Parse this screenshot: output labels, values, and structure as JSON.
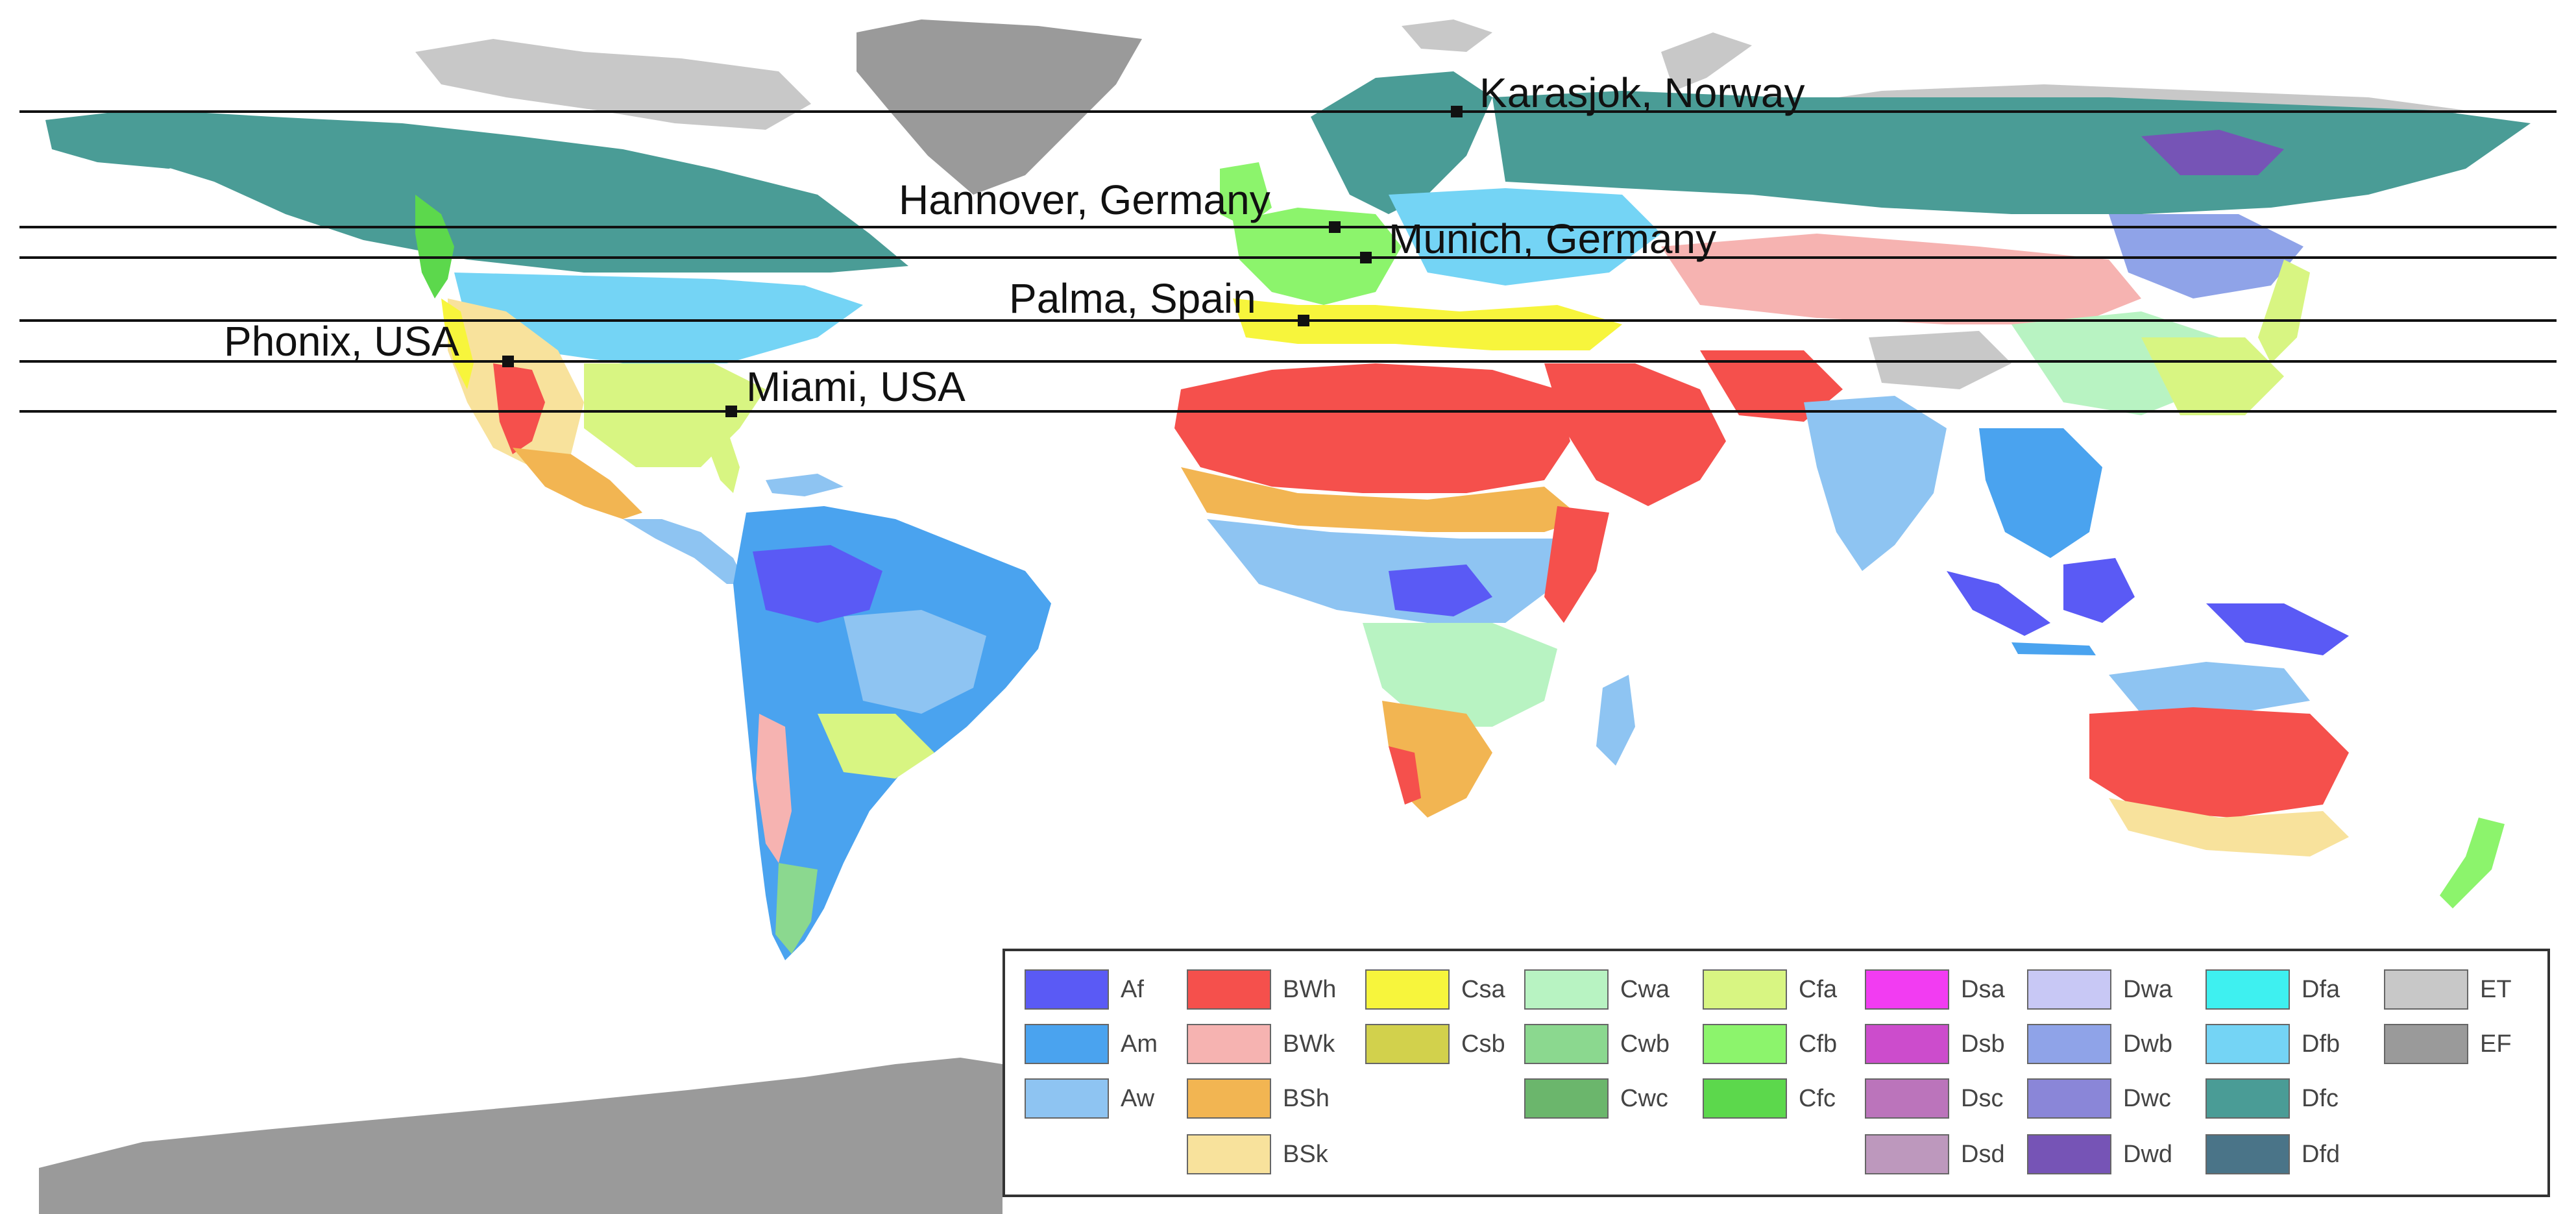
{
  "map": {
    "ocean_color": "#ffffff",
    "parallel_color": "#111111"
  },
  "locations": [
    {
      "name": "karasjok",
      "label": "Karasjok, Norway"
    },
    {
      "name": "hannover",
      "label": "Hannover, Germany"
    },
    {
      "name": "munich",
      "label": "Munich, Germany"
    },
    {
      "name": "palma",
      "label": "Palma, Spain"
    },
    {
      "name": "phoenix",
      "label": "Phonix, USA"
    },
    {
      "name": "miami",
      "label": "Miami, USA"
    }
  ],
  "legend": {
    "items": [
      {
        "code": "Af",
        "color": "#5a5af5"
      },
      {
        "code": "Am",
        "color": "#4aa3ef"
      },
      {
        "code": "Aw",
        "color": "#8ec4f2"
      },
      {
        "code": "BWh",
        "color": "#f5504c"
      },
      {
        "code": "BWk",
        "color": "#f6b3b1"
      },
      {
        "code": "BSh",
        "color": "#f2b552"
      },
      {
        "code": "BSk",
        "color": "#f8e29c"
      },
      {
        "code": "Csa",
        "color": "#f7f53c"
      },
      {
        "code": "Csb",
        "color": "#d2d14c"
      },
      {
        "code": "Cwa",
        "color": "#b8f3c2"
      },
      {
        "code": "Cwb",
        "color": "#8bd88f"
      },
      {
        "code": "Cwc",
        "color": "#6bb66c"
      },
      {
        "code": "Cfa",
        "color": "#d8f582"
      },
      {
        "code": "Cfb",
        "color": "#8cf46c"
      },
      {
        "code": "Cfc",
        "color": "#5cd84c"
      },
      {
        "code": "Dsa",
        "color": "#f23cf2"
      },
      {
        "code": "Dsb",
        "color": "#cc4ccc"
      },
      {
        "code": "Dsc",
        "color": "#bb74bb"
      },
      {
        "code": "Dsd",
        "color": "#bd98bd"
      },
      {
        "code": "Dwa",
        "color": "#c8c8f5"
      },
      {
        "code": "Dwb",
        "color": "#8fa3e8"
      },
      {
        "code": "Dwc",
        "color": "#8a86d8"
      },
      {
        "code": "Dwd",
        "color": "#7654b6"
      },
      {
        "code": "Dfa",
        "color": "#3ef0f0"
      },
      {
        "code": "Dfb",
        "color": "#74d4f5"
      },
      {
        "code": "Dfc",
        "color": "#4a9c96"
      },
      {
        "code": "Dfd",
        "color": "#4a7488"
      },
      {
        "code": "ET",
        "color": "#c8c8c8"
      },
      {
        "code": "EF",
        "color": "#9a9a9a"
      }
    ]
  }
}
